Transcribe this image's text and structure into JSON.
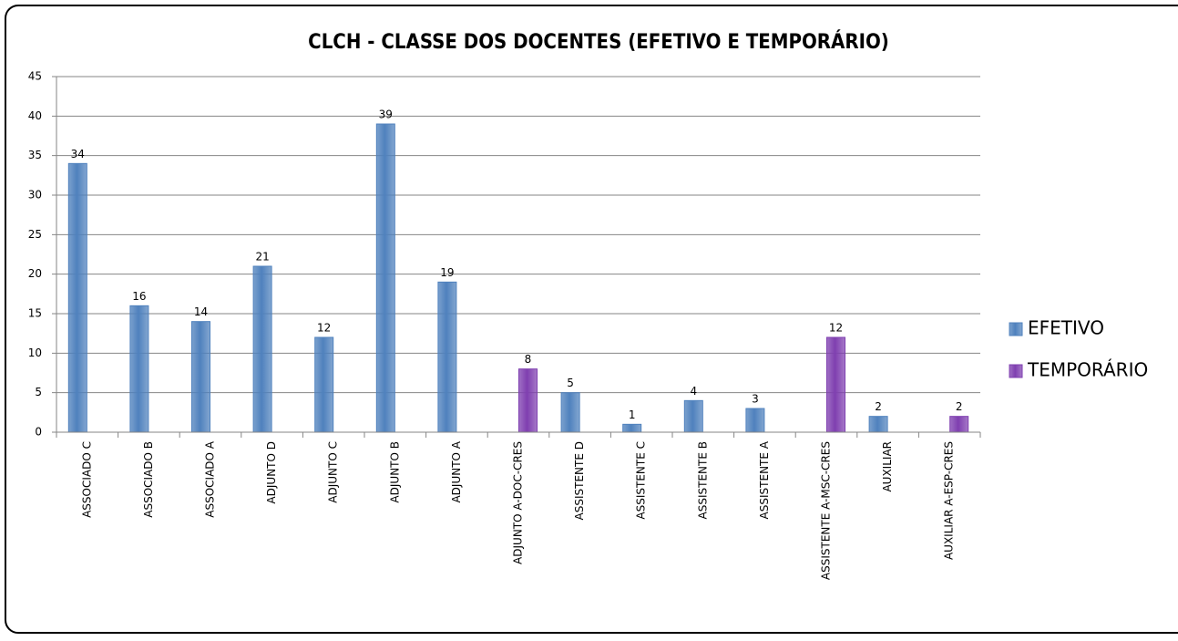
{
  "chart_data": {
    "type": "bar",
    "title": "CLCH - CLASSE DOS DOCENTES  (EFETIVO E TEMPORÁRIO)",
    "categories": [
      "ASSOCIADO C",
      "ASSOCIADO B",
      "ASSOCIADO A",
      "ADJUNTO D",
      "ADJUNTO C",
      "ADJUNTO B",
      "ADJUNTO A",
      "ADJUNTO A-DOC-CRES",
      "ASSISTENTE D",
      "ASSISTENTE C",
      "ASSISTENTE B",
      "ASSISTENTE A",
      "ASSISTENTE A-MSC-CRES",
      "AUXILIAR",
      "AUXILIAR A-ESP-CRES"
    ],
    "series": [
      {
        "name": "EFETIVO",
        "color": "#4f81bd",
        "values": [
          34,
          16,
          14,
          21,
          12,
          39,
          19,
          null,
          5,
          1,
          4,
          3,
          null,
          2,
          null
        ]
      },
      {
        "name": "TEMPORÁRIO",
        "color": "#7f3fb0",
        "values": [
          null,
          null,
          null,
          null,
          null,
          null,
          null,
          8,
          null,
          null,
          null,
          null,
          12,
          null,
          2
        ]
      }
    ],
    "ylim": [
      0,
      45
    ],
    "yticks": [
      0,
      5,
      10,
      15,
      20,
      25,
      30,
      35,
      40,
      45
    ],
    "grid": true,
    "legend": "right"
  }
}
